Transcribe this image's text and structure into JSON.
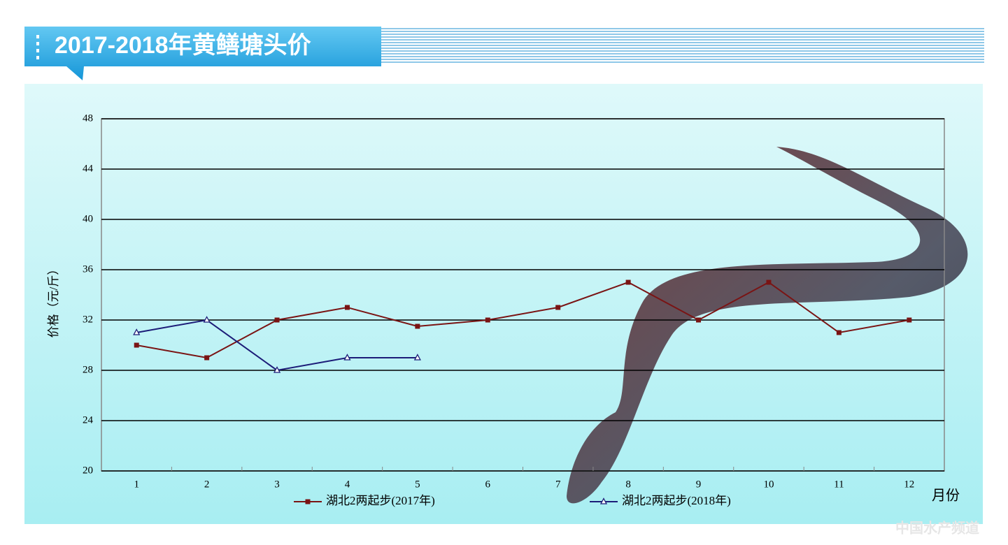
{
  "chart_data": {
    "type": "line",
    "title": "2017-2018年黄鳝塘头价",
    "y_label": "价格（元/斤）",
    "x_label": "月份",
    "watermark": "中国水产频道",
    "categories": [
      "1",
      "2",
      "3",
      "4",
      "5",
      "6",
      "7",
      "8",
      "9",
      "10",
      "11",
      "12"
    ],
    "series": [
      {
        "name": "湖北2两起步(2017年)",
        "color": "#7a1414",
        "marker": "square",
        "values": [
          30,
          29,
          32,
          33,
          31.5,
          32,
          33,
          35,
          32,
          35,
          31,
          32
        ]
      },
      {
        "name": "湖北2两起步(2018年)",
        "color": "#1c1c78",
        "marker": "triangle",
        "values": [
          31,
          32,
          28,
          29,
          29,
          null,
          null,
          null,
          null,
          null,
          null,
          null
        ]
      }
    ],
    "ylim": [
      20,
      48
    ],
    "yticks": [
      20,
      24,
      28,
      32,
      36,
      40,
      44,
      48
    ],
    "grid": true
  }
}
